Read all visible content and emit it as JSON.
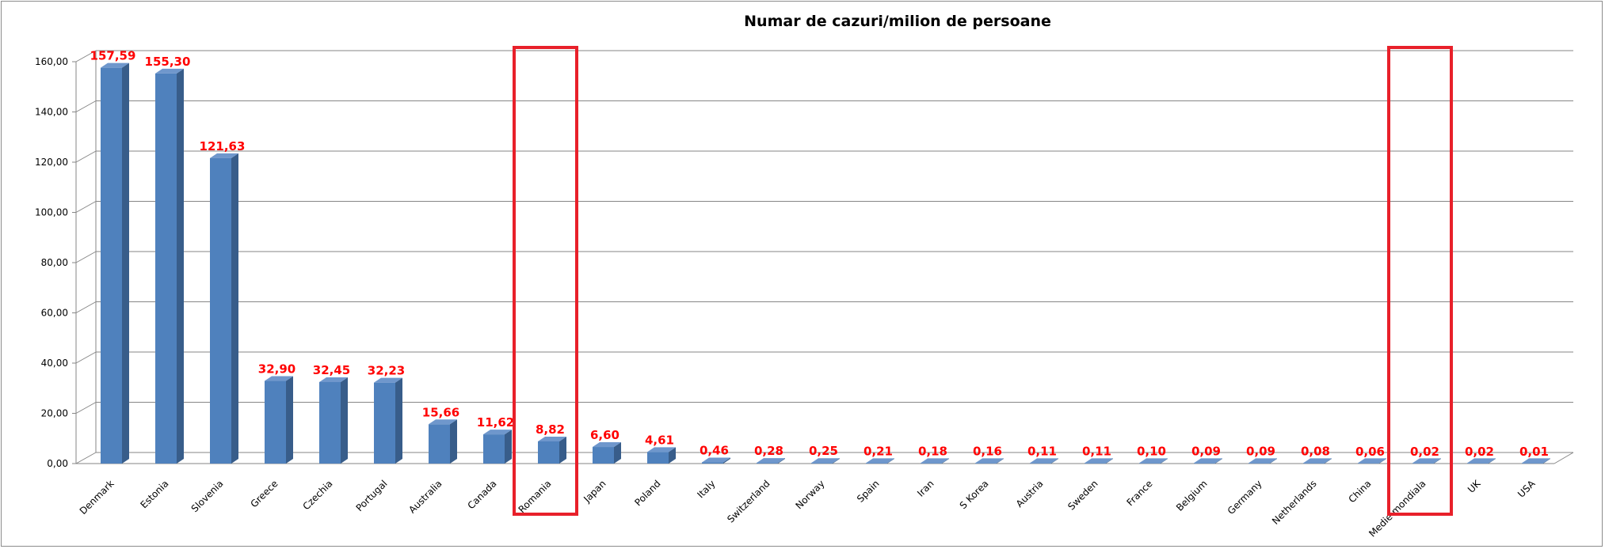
{
  "chart_data": {
    "type": "bar",
    "title": "Numar de cazuri/milion de persoane",
    "xlabel": "",
    "ylabel": "",
    "ylim": [
      0,
      160
    ],
    "yticks": [
      0,
      20,
      40,
      60,
      80,
      100,
      120,
      140,
      160
    ],
    "ytick_labels": [
      "0,00",
      "20,00",
      "40,00",
      "60,00",
      "80,00",
      "100,00",
      "120,00",
      "140,00",
      "160,00"
    ],
    "grid": true,
    "legend": "none",
    "bar_color": "#4f81bd",
    "label_color": "#ff0000",
    "highlight_color": "#e8202a",
    "highlighted_categories": [
      "Romania",
      "Medie mondiala"
    ],
    "categories": [
      "Denmark",
      "Estonia",
      "Slovenia",
      "Greece",
      "Czechia",
      "Portugal",
      "Australia",
      "Canada",
      "Romania",
      "Japan",
      "Poland",
      "Italy",
      "Switzerland",
      "Norway",
      "Spain",
      "Iran",
      "S Korea",
      "Austria",
      "Sweden",
      "France",
      "Belgium",
      "Germany",
      "Netherlands",
      "China",
      "Medie mondiala",
      "UK",
      "USA"
    ],
    "values": [
      157.59,
      155.3,
      121.63,
      32.9,
      32.45,
      32.23,
      15.66,
      11.62,
      8.82,
      6.6,
      4.61,
      0.46,
      0.28,
      0.25,
      0.21,
      0.18,
      0.16,
      0.11,
      0.11,
      0.1,
      0.09,
      0.09,
      0.08,
      0.06,
      0.02,
      0.02,
      0.01
    ],
    "value_labels": [
      "157,59",
      "155,30",
      "121,63",
      "32,90",
      "32,45",
      "32,23",
      "15,66",
      "11,62",
      "8,82",
      "6,60",
      "4,61",
      "0,46",
      "0,28",
      "0,25",
      "0,21",
      "0,18",
      "0,16",
      "0,11",
      "0,11",
      "0,10",
      "0,09",
      "0,09",
      "0,08",
      "0,06",
      "0,02",
      "0,02",
      "0,01"
    ]
  }
}
